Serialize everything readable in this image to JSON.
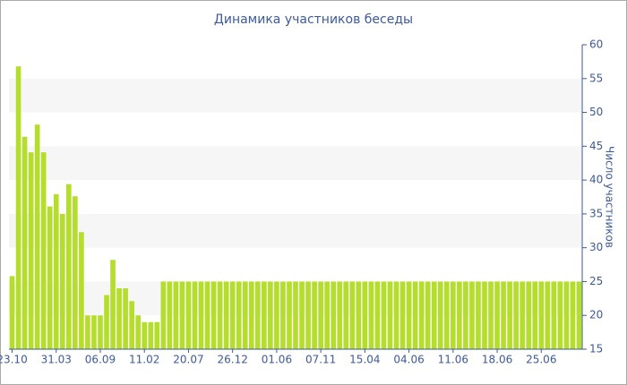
{
  "chart_data": {
    "type": "bar",
    "title": "Динамика участников беседы",
    "y_axis_label": "Число участников",
    "categories": [
      "23.10",
      null,
      null,
      null,
      null,
      null,
      null,
      "31.03",
      null,
      null,
      null,
      null,
      null,
      null,
      "06.09",
      null,
      null,
      null,
      null,
      null,
      null,
      "11.02",
      null,
      null,
      null,
      null,
      null,
      null,
      "20.07",
      null,
      null,
      null,
      null,
      null,
      null,
      "26.12",
      null,
      null,
      null,
      null,
      null,
      null,
      "01.06",
      null,
      null,
      null,
      null,
      null,
      null,
      "07.11",
      null,
      null,
      null,
      null,
      null,
      null,
      "15.04",
      null,
      null,
      null,
      null,
      null,
      null,
      "04.06",
      null,
      null,
      null,
      null,
      null,
      null,
      "11.06",
      null,
      null,
      null,
      null,
      null,
      null,
      "18.06",
      null,
      null,
      null,
      null,
      null,
      null,
      "25.06",
      null,
      null,
      null,
      null,
      null,
      null
    ],
    "values": [
      25.8,
      56.8,
      46.4,
      44.1,
      48.2,
      44.1,
      36.1,
      37.9,
      35,
      39.4,
      37.6,
      32.3,
      20,
      20,
      20,
      23,
      28.2,
      24,
      24,
      22.1,
      20,
      19,
      19,
      19,
      25,
      25,
      25,
      25,
      25,
      25,
      25,
      25,
      25,
      25,
      25,
      25,
      25,
      25,
      25,
      25,
      25,
      25,
      25,
      25,
      25,
      25,
      25,
      25,
      25,
      25,
      25,
      25,
      25,
      25,
      25,
      25,
      25,
      25,
      25,
      25,
      25,
      25,
      25,
      25,
      25,
      25,
      25,
      25,
      25,
      25,
      25,
      25,
      25,
      25,
      25,
      25,
      25,
      25,
      25,
      25,
      25,
      25,
      25,
      25,
      25,
      25,
      25,
      25,
      25,
      25,
      25
    ],
    "color": "#b5dd2c",
    "ylim": [
      15,
      60
    ],
    "yticks": [
      15,
      20,
      25,
      30,
      35,
      40,
      45,
      50,
      55,
      60
    ],
    "y_axis_side": "right"
  }
}
